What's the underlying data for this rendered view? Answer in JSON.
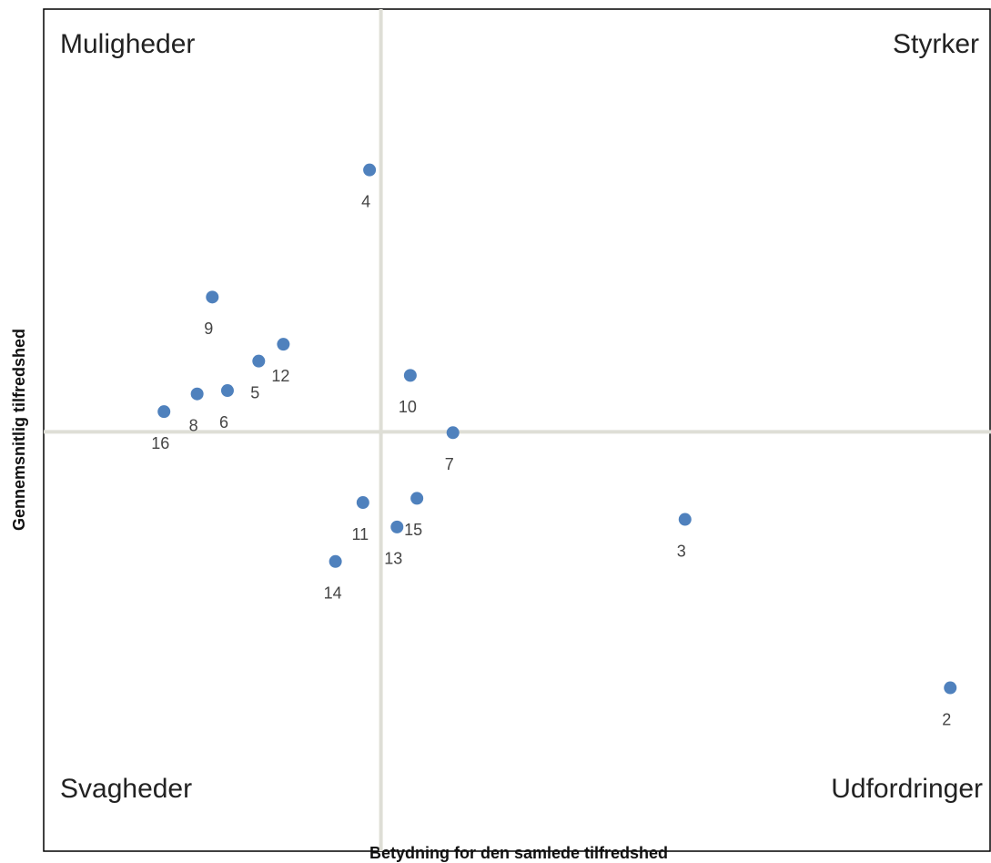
{
  "chart_data": {
    "type": "scatter",
    "x_label": "Betydning for den samlede tilfredshed",
    "y_label": "Gennemsnitlig tilfredshed",
    "quadrants": {
      "top_left": "Muligheder",
      "top_right": "Styrker",
      "bottom_left": "Svagheder",
      "bottom_right": "Udfordringer"
    },
    "xlim": [
      0,
      100
    ],
    "ylim": [
      0,
      100
    ],
    "x_cross": 35.6,
    "y_cross": 49.8,
    "color": "#4f81bd",
    "point_labels": [
      "4",
      "9",
      "12",
      "5",
      "10",
      "6",
      "8",
      "16",
      "7",
      "15",
      "11",
      "13",
      "14",
      "3",
      "2"
    ],
    "x": [
      34.4,
      17.8,
      25.3,
      22.7,
      38.7,
      19.4,
      16.2,
      12.7,
      43.2,
      39.4,
      33.7,
      37.3,
      30.8,
      67.7,
      95.7
    ],
    "values": [
      80.9,
      65.8,
      60.2,
      58.2,
      56.5,
      54.7,
      54.3,
      52.2,
      49.7,
      41.9,
      41.4,
      38.5,
      34.4,
      39.4,
      19.4
    ]
  }
}
